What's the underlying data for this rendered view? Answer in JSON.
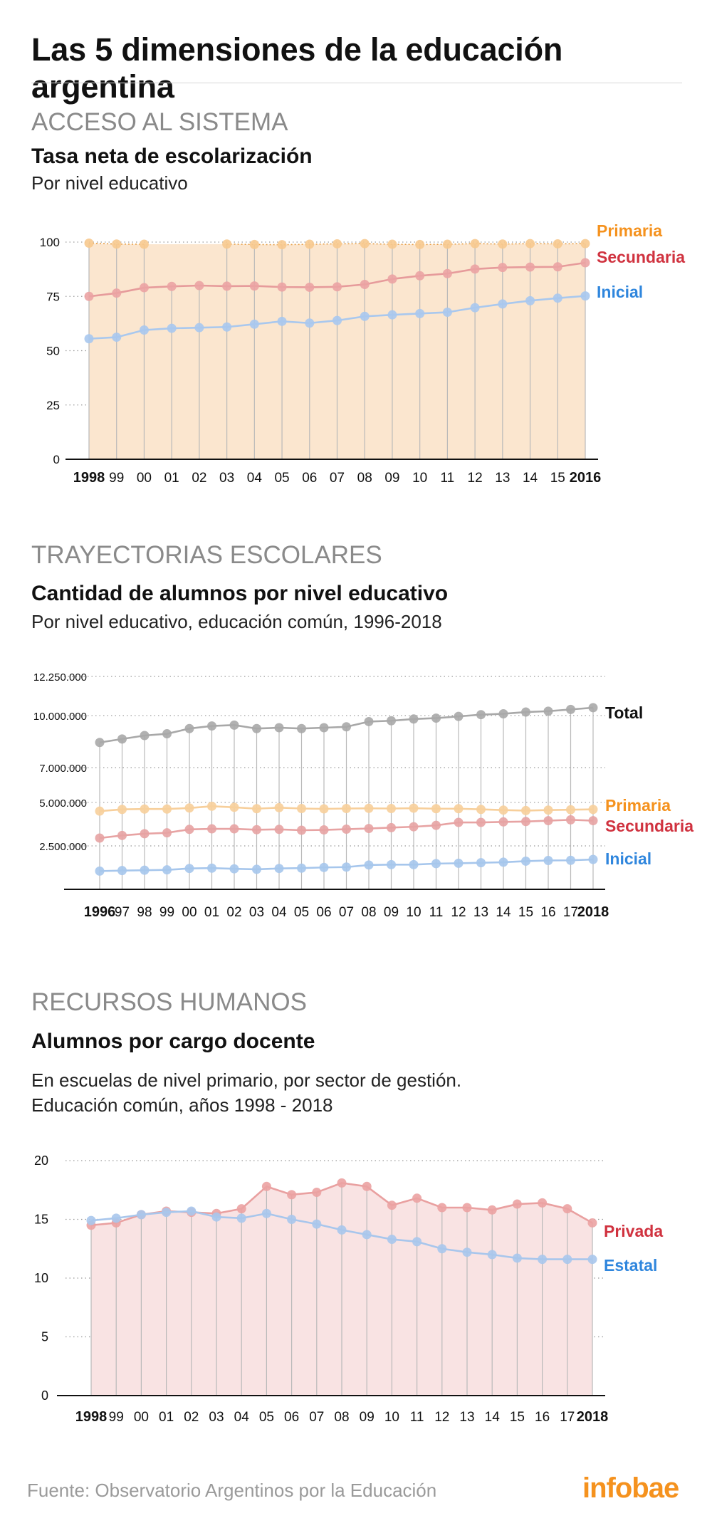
{
  "header": {
    "title": "Las 5 dimensiones de la educación argentina"
  },
  "sections": [
    {
      "label": "ACCESO AL SISTEMA",
      "chart_title": "Tasa neta de escolarización",
      "subtitle": [
        "Por nivel educativo"
      ]
    },
    {
      "label": "TRAYECTORIAS ESCOLARES",
      "chart_title": "Cantidad de alumnos por nivel educativo",
      "subtitle": [
        "Por nivel educativo, educación común, 1996-2018"
      ]
    },
    {
      "label": "RECURSOS HUMANOS",
      "chart_title": "Alumnos por cargo docente",
      "subtitle": [
        "En escuelas de nivel primario, por sector de gestión.",
        "Educación común, años 1998 - 2018"
      ]
    }
  ],
  "footer": {
    "source": "Fuente: Observatorio Argentinos por la Educación",
    "brand": "infobae"
  },
  "colors": {
    "primaria": "#f5921e",
    "secundaria": "#d0323f",
    "inicial": "#2f86dd",
    "total": "#111111",
    "privada": "#d0323f",
    "estatal": "#2f86dd",
    "area_chart1": "#fbe6cf",
    "area_chart3": "#f9e3e3"
  },
  "chart_data": [
    {
      "type": "line",
      "x": [
        "1998",
        "99",
        "00",
        "01",
        "02",
        "03",
        "04",
        "05",
        "06",
        "07",
        "08",
        "09",
        "10",
        "11",
        "12",
        "13",
        "14",
        "15",
        "2016"
      ],
      "bold_ticks": [
        "1998",
        "2016"
      ],
      "ylim": [
        0,
        100
      ],
      "yticks": [
        "0",
        "25",
        "50",
        "75",
        "100"
      ],
      "area_under": "Primaria",
      "series": [
        {
          "name": "Primaria",
          "color": "#f5921e",
          "point_color": "#f7c98e",
          "line_color": "#e8a048",
          "dotted": true,
          "values": [
            99.5,
            99.1,
            99.0,
            null,
            null,
            99.1,
            98.9,
            98.8,
            99.0,
            99.2,
            99.3,
            99.0,
            98.9,
            99.0,
            99.3,
            99.1,
            99.3,
            99.2,
            99.3
          ]
        },
        {
          "name": "Secundaria",
          "color": "#d0323f",
          "point_color": "#eba3a3",
          "line_color": "#e69b9b",
          "dotted": false,
          "values": [
            75.0,
            76.5,
            79.0,
            79.6,
            80.0,
            79.7,
            79.8,
            79.3,
            79.2,
            79.4,
            80.5,
            83.0,
            84.5,
            85.5,
            87.6,
            88.3,
            88.5,
            88.6,
            90.5
          ]
        },
        {
          "name": "Inicial",
          "color": "#2f86dd",
          "point_color": "#a9c8ee",
          "line_color": "#a9c8ee",
          "dotted": false,
          "values": [
            55.5,
            56.2,
            59.5,
            60.3,
            60.6,
            60.9,
            62.2,
            63.5,
            62.7,
            63.9,
            65.8,
            66.5,
            67.1,
            67.7,
            69.8,
            71.5,
            73.0,
            74.2,
            75.2
          ]
        }
      ]
    },
    {
      "type": "line",
      "x": [
        "1996",
        "97",
        "98",
        "99",
        "00",
        "01",
        "02",
        "03",
        "04",
        "05",
        "06",
        "07",
        "08",
        "09",
        "10",
        "11",
        "12",
        "13",
        "14",
        "15",
        "16",
        "17",
        "2018"
      ],
      "bold_ticks": [
        "1996",
        "2018"
      ],
      "ylim": [
        0,
        12250000
      ],
      "yticks": [
        "2.500.000",
        "5.000.000",
        "7.000.000",
        "10.000.000",
        "12.250.000"
      ],
      "ytick_values": [
        2500000,
        5000000,
        7000000,
        10000000,
        12250000
      ],
      "series": [
        {
          "name": "Total",
          "color": "#111111",
          "point_color": "#a8a8a8",
          "line_color": "#a8a8a8",
          "values": [
            8450000,
            8650000,
            8850000,
            8950000,
            9250000,
            9400000,
            9450000,
            9250000,
            9300000,
            9250000,
            9300000,
            9350000,
            9650000,
            9700000,
            9800000,
            9850000,
            9950000,
            10050000,
            10100000,
            10200000,
            10250000,
            10350000,
            10450000
          ]
        },
        {
          "name": "Primaria",
          "color": "#f5921e",
          "point_color": "#f7cf9b",
          "line_color": "#f7cf9b",
          "values": [
            4500000,
            4600000,
            4620000,
            4620000,
            4680000,
            4780000,
            4720000,
            4640000,
            4700000,
            4650000,
            4630000,
            4650000,
            4660000,
            4650000,
            4670000,
            4640000,
            4640000,
            4600000,
            4560000,
            4530000,
            4560000,
            4580000,
            4600000
          ]
        },
        {
          "name": "Secundaria",
          "color": "#d0323f",
          "point_color": "#e7a3a3",
          "line_color": "#e7a3a3",
          "values": [
            2950000,
            3100000,
            3200000,
            3250000,
            3450000,
            3480000,
            3480000,
            3430000,
            3450000,
            3400000,
            3420000,
            3460000,
            3500000,
            3550000,
            3600000,
            3680000,
            3850000,
            3850000,
            3880000,
            3900000,
            3950000,
            4000000,
            3950000
          ]
        },
        {
          "name": "Inicial",
          "color": "#2f86dd",
          "point_color": "#a6c6ec",
          "line_color": "#a6c6ec",
          "values": [
            1050000,
            1080000,
            1100000,
            1120000,
            1200000,
            1220000,
            1180000,
            1150000,
            1200000,
            1220000,
            1260000,
            1280000,
            1400000,
            1420000,
            1420000,
            1480000,
            1500000,
            1530000,
            1560000,
            1620000,
            1660000,
            1670000,
            1720000
          ]
        }
      ]
    },
    {
      "type": "line",
      "x": [
        "1998",
        "99",
        "00",
        "01",
        "02",
        "03",
        "04",
        "05",
        "06",
        "07",
        "08",
        "09",
        "10",
        "11",
        "12",
        "13",
        "14",
        "15",
        "16",
        "17",
        "2018"
      ],
      "bold_ticks": [
        "1998",
        "2018"
      ],
      "ylim": [
        0,
        20
      ],
      "yticks": [
        "0",
        "5",
        "10",
        "15",
        "20"
      ],
      "area_under": "Privada",
      "series": [
        {
          "name": "Privada",
          "color": "#d0323f",
          "point_color": "#eba2a2",
          "line_color": "#e9a0a0",
          "values": [
            14.5,
            14.7,
            15.4,
            15.7,
            15.6,
            15.5,
            15.9,
            17.8,
            17.1,
            17.3,
            18.1,
            17.8,
            16.2,
            16.8,
            16.0,
            16.0,
            15.8,
            16.3,
            16.4,
            15.9,
            14.7
          ]
        },
        {
          "name": "Estatal",
          "color": "#2f86dd",
          "point_color": "#a8c6ec",
          "line_color": "#a8c6ec",
          "values": [
            14.9,
            15.1,
            15.4,
            15.6,
            15.7,
            15.2,
            15.1,
            15.5,
            15.0,
            14.6,
            14.1,
            13.7,
            13.3,
            13.1,
            12.5,
            12.2,
            12.0,
            11.7,
            11.6,
            11.6,
            11.6
          ]
        }
      ]
    }
  ]
}
